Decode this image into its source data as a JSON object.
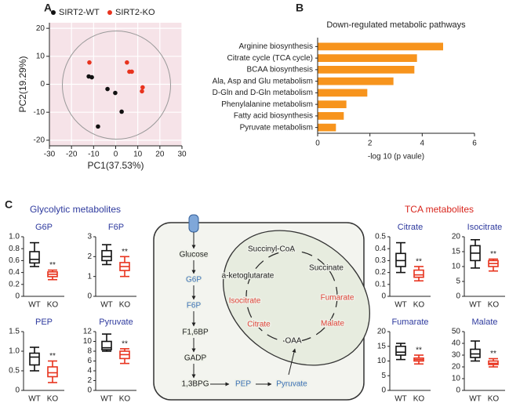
{
  "panels": {
    "labels": [
      "A",
      "B",
      "C"
    ],
    "glycolytic_title": "Glycolytic metabolites",
    "tca_title": "TCA metabolites"
  },
  "chart_data": [
    {
      "type": "scatter",
      "legend": "top",
      "grid": true,
      "xlabel": "PC1(37.53%)",
      "ylabel": "PC2(19.29%)",
      "xlim": [
        -30,
        30
      ],
      "xticks": [
        -30,
        -20,
        -10,
        0,
        10,
        20,
        30
      ],
      "ylim": [
        -22,
        22
      ],
      "yticks": [
        -20,
        -10,
        0,
        10,
        20
      ],
      "series": [
        {
          "name": "SIRT2-WT",
          "color": "#111111",
          "x": [
            -12.2,
            -10.8,
            -3.7,
            -0.2,
            2.7,
            -8
          ],
          "y": [
            2.8,
            2.5,
            -1.7,
            -3.1,
            -9.8,
            -15.1
          ]
        },
        {
          "name": "SIRT2-KO",
          "color": "#e8331e",
          "x": [
            -11.9,
            5.1,
            6.2,
            7.3,
            12.2,
            11.9
          ],
          "y": [
            7.8,
            7.8,
            4.5,
            4.5,
            -1.1,
            -2.5
          ]
        }
      ]
    },
    {
      "type": "barh",
      "title": "Down-regulated metabolic pathways",
      "xlabel": "-log 10 (p vaule)",
      "color": "#f7941d",
      "categories": [
        "Arginine biosynthesis",
        "Citrate cycle (TCA cycle)",
        "BCAA  biosynthesis",
        "Ala, Asp and Glu metabolism",
        "D-Gln and D-Gln metabolism",
        "Phenylalanine metabolism",
        "Fatty acid biosynthesis",
        "Pyruvate metabolism"
      ],
      "values": [
        4.8,
        3.8,
        3.7,
        2.9,
        1.9,
        1.1,
        1.0,
        0.7
      ],
      "xlim": [
        0,
        6
      ],
      "xticks": [
        0,
        2,
        4,
        6
      ]
    },
    {
      "type": "box",
      "title": "G6P",
      "categories": [
        "WT",
        "KO"
      ],
      "colors": [
        "#111111",
        "#e8331e"
      ],
      "annotation": "**",
      "ylim": [
        0,
        1.0
      ],
      "yticks": [
        0,
        0.2,
        0.4,
        0.6,
        0.8,
        {
          "value": 1.0,
          "label": "1.0"
        }
      ],
      "boxes": [
        {
          "min": 0.5,
          "q1": 0.56,
          "median": 0.62,
          "q3": 0.75,
          "max": 0.9
        },
        {
          "min": 0.28,
          "q1": 0.33,
          "median": 0.37,
          "q3": 0.41,
          "max": 0.44
        }
      ]
    },
    {
      "type": "box",
      "title": "F6P",
      "categories": [
        "WT",
        "KO"
      ],
      "colors": [
        "#111111",
        "#e8331e"
      ],
      "annotation": "**",
      "ylim": [
        0,
        3
      ],
      "yticks": [
        0,
        1,
        2,
        3
      ],
      "boxes": [
        {
          "min": 1.6,
          "q1": 1.8,
          "median": 2.0,
          "q3": 2.3,
          "max": 2.6
        },
        {
          "min": 1.0,
          "q1": 1.3,
          "median": 1.5,
          "q3": 1.7,
          "max": 2.0
        }
      ]
    },
    {
      "type": "box",
      "title": "Citrate",
      "categories": [
        "WT",
        "KO"
      ],
      "colors": [
        "#111111",
        "#e8331e"
      ],
      "annotation": "**",
      "ylim": [
        0,
        0.5
      ],
      "yticks": [
        0,
        0.1,
        0.2,
        0.3,
        0.4,
        0.5
      ],
      "boxes": [
        {
          "min": 0.2,
          "q1": 0.25,
          "median": 0.3,
          "q3": 0.36,
          "max": 0.45
        },
        {
          "min": 0.13,
          "q1": 0.16,
          "median": 0.18,
          "q3": 0.22,
          "max": 0.25
        }
      ]
    },
    {
      "type": "box",
      "title": "Isocitrate",
      "categories": [
        "WT",
        "KO"
      ],
      "colors": [
        "#111111",
        "#e8331e"
      ],
      "annotation": "**",
      "ylim": [
        0,
        20
      ],
      "yticks": [
        0,
        5,
        10,
        15,
        20
      ],
      "boxes": [
        {
          "min": 9.5,
          "q1": 12,
          "median": 14.5,
          "q3": 17,
          "max": 19
        },
        {
          "min": 8.5,
          "q1": 10,
          "median": 11,
          "q3": 12,
          "max": 12.5
        }
      ]
    },
    {
      "type": "box",
      "title": "PEP",
      "categories": [
        "WT",
        "KO"
      ],
      "colors": [
        "#111111",
        "#e8331e"
      ],
      "annotation": "**",
      "ylim": [
        0,
        1.5
      ],
      "yticks": [
        0,
        0.5,
        {
          "value": 1.0,
          "label": "1.0"
        },
        1.5
      ],
      "boxes": [
        {
          "min": 0.5,
          "q1": 0.65,
          "median": 0.85,
          "q3": 0.95,
          "max": 1.1
        },
        {
          "min": 0.2,
          "q1": 0.35,
          "median": 0.45,
          "q3": 0.6,
          "max": 0.75
        }
      ]
    },
    {
      "type": "box",
      "title": "Pyruvate",
      "categories": [
        "WT",
        "KO"
      ],
      "colors": [
        "#111111",
        "#e8331e"
      ],
      "annotation": "**",
      "ylim": [
        0,
        12
      ],
      "yticks": [
        0,
        2,
        4,
        6,
        8,
        10,
        12
      ],
      "boxes": [
        {
          "min": 8,
          "q1": 8.3,
          "median": 8.7,
          "q3": 10,
          "max": 11.5
        },
        {
          "min": 5.5,
          "q1": 6.5,
          "median": 7.3,
          "q3": 8,
          "max": 8.5
        }
      ]
    },
    {
      "type": "box",
      "title": "Fumarate",
      "categories": [
        "WT",
        "KO"
      ],
      "colors": [
        "#111111",
        "#e8331e"
      ],
      "annotation": "**",
      "ylim": [
        0,
        20
      ],
      "yticks": [
        0,
        5,
        10,
        15,
        20
      ],
      "boxes": [
        {
          "min": 10.5,
          "q1": 12,
          "median": 13,
          "q3": 15,
          "max": 16
        },
        {
          "min": 9,
          "q1": 10,
          "median": 10.5,
          "q3": 11,
          "max": 12
        }
      ]
    },
    {
      "type": "box",
      "title": "Malate",
      "categories": [
        "WT",
        "KO"
      ],
      "colors": [
        "#111111",
        "#e8331e"
      ],
      "annotation": "**",
      "ylim": [
        0,
        50
      ],
      "yticks": [
        0,
        10,
        20,
        30,
        40,
        50
      ],
      "boxes": [
        {
          "min": 25,
          "q1": 28,
          "median": 31,
          "q3": 35,
          "max": 42
        },
        {
          "min": 20,
          "q1": 22,
          "median": 23,
          "q3": 25,
          "max": 27
        }
      ]
    }
  ],
  "diagram": {
    "nodes": [
      {
        "label": "Glucose",
        "color": "#222222"
      },
      {
        "label": "G6P",
        "color": "#3a6fb5"
      },
      {
        "label": "F6P",
        "color": "#3a6fb5"
      },
      {
        "label": "F1,6BP",
        "color": "#222222"
      },
      {
        "label": "GADP",
        "color": "#222222"
      },
      {
        "label": "1,3BPG",
        "color": "#222222"
      },
      {
        "label": "PEP",
        "color": "#3a6fb5"
      },
      {
        "label": "Pyruvate",
        "color": "#3a6fb5"
      },
      {
        "label": "Succinyl-CoA",
        "color": "#222222"
      },
      {
        "label": "a-ketoglutarate",
        "color": "#222222"
      },
      {
        "label": "Succinate",
        "color": "#222222"
      },
      {
        "label": "Isocitrate",
        "color": "#e0453a"
      },
      {
        "label": "Fumarate",
        "color": "#e0453a"
      },
      {
        "label": "Citrate",
        "color": "#e0453a"
      },
      {
        "label": "Malate",
        "color": "#e0453a"
      },
      {
        "label": "OAA",
        "color": "#222222"
      }
    ]
  }
}
